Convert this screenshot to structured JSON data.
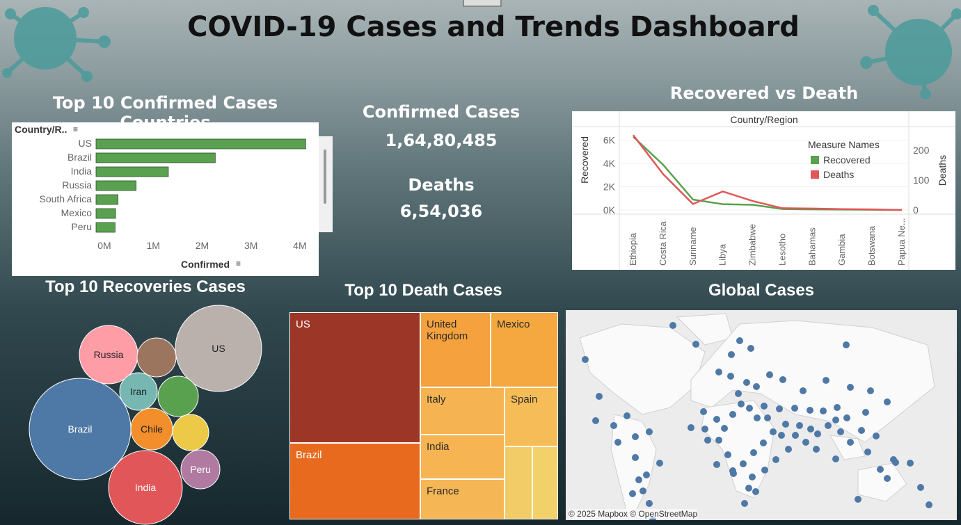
{
  "title": "COVID-19 Cases and Trends Dashboard",
  "kpi": {
    "confirmed_label": "Confirmed Cases",
    "confirmed_value": "1,64,80,485",
    "deaths_label": "Deaths",
    "deaths_value": "6,54,036"
  },
  "bar_panel": {
    "title": "Top 10 Confirmed Cases Countries",
    "col_header": "Country/R..",
    "axis_title": "Confirmed"
  },
  "line_panel": {
    "title": "Recovered vs Death",
    "top_header": "Country/Region",
    "left_axis": "Recovered",
    "right_axis": "Deaths",
    "legend_title": "Measure Names"
  },
  "bubble_panel": {
    "title": "Top 10 Recoveries Cases"
  },
  "treemap_panel": {
    "title": "Top 10 Death Cases"
  },
  "map_panel": {
    "title": "Global Cases",
    "attribution": "© 2025 Mapbox © OpenStreetMap"
  },
  "colors": {
    "bar": "#59a14f",
    "recovered": "#59a14f",
    "deaths": "#e15759",
    "map_dot": "#4e79a7"
  },
  "chart_data": [
    {
      "id": "confirmed-bar",
      "type": "bar",
      "orientation": "horizontal",
      "title": "Top 10 Confirmed Cases Countries",
      "categories": [
        "US",
        "Brazil",
        "India",
        "Russia",
        "South Africa",
        "Mexico",
        "Peru"
      ],
      "values": [
        4290000,
        2440000,
        1480000,
        820000,
        450000,
        400000,
        390000
      ],
      "xlabel": "Confirmed",
      "ylabel": "Country/R..",
      "xticks": [
        "0M",
        "1M",
        "2M",
        "3M",
        "4M"
      ],
      "xlim": [
        0,
        4400000
      ]
    },
    {
      "id": "recovered-vs-death",
      "type": "line",
      "title": "Recovered vs Death",
      "x": [
        "Ethiopia",
        "Costa Rica",
        "Suriname",
        "Libya",
        "Zimbabwe",
        "Lesotho",
        "Bahamas",
        "Gambia",
        "Botswana",
        "Papua Ne..."
      ],
      "series": [
        {
          "name": "Recovered",
          "axis": "left",
          "values": [
            6300,
            3900,
            900,
            500,
            450,
            80,
            50,
            40,
            20,
            10
          ],
          "color": "#59a14f"
        },
        {
          "name": "Deaths",
          "axis": "right",
          "values": [
            250,
            120,
            20,
            62,
            30,
            6,
            5,
            3,
            2,
            0
          ],
          "color": "#e15759"
        }
      ],
      "ylabel_left": "Recovered",
      "ylabel_right": "Deaths",
      "yticks_left": [
        "0K",
        "2K",
        "4K",
        "6K"
      ],
      "yticks_right": [
        "0",
        "100",
        "200"
      ],
      "ylim_left": [
        0,
        6700
      ],
      "ylim_right": [
        0,
        260
      ],
      "legend_title": "Measure Names",
      "legend": "top-right"
    },
    {
      "id": "recoveries-bubbles",
      "type": "bubble",
      "title": "Top 10 Recoveries Cases",
      "labels": [
        "Brazil",
        "US",
        "India",
        "Russia",
        "Iran",
        "Chile",
        "Peru",
        "",
        "",
        ""
      ],
      "colors": [
        "#4e79a7",
        "#bab0ac",
        "#e15759",
        "#ff9da7",
        "#76b7b2",
        "#f28e2b",
        "#b07aa1",
        "#59a14f",
        "#9c755f",
        "#edc948"
      ]
    },
    {
      "id": "death-treemap",
      "type": "treemap",
      "title": "Top 10 Death Cases",
      "labels": [
        "US",
        "Brazil",
        "United Kingdom",
        "Mexico",
        "Italy",
        "Spain",
        "India",
        "France",
        "",
        ""
      ],
      "colors": [
        "#9c3626",
        "#e86a1e",
        "#f5a23e",
        "#f5a740",
        "#f5b451",
        "#f5bc58",
        "#f6b452",
        "#f5b656",
        "#f1cc67",
        "#f2d16a"
      ]
    }
  ]
}
